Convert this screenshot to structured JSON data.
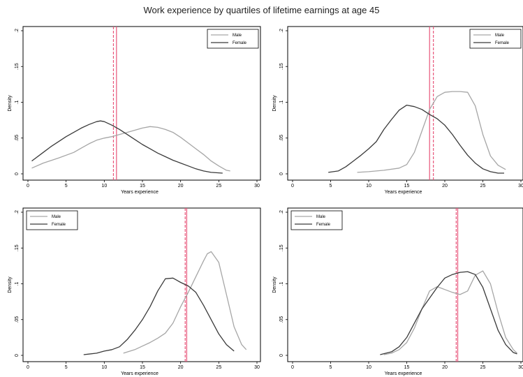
{
  "title": "Work experience by quartiles of lifetime earnings at age 45",
  "colors": {
    "male": "#a6a6a6",
    "female": "#3a3a3a",
    "mean_line": "#e8557a",
    "frame": "#000000"
  },
  "chart_data": [
    {
      "type": "line",
      "panel": "top-left",
      "xlabel": "Years experience",
      "ylabel": "Density",
      "xlim": [
        0,
        30
      ],
      "ylim": [
        0,
        0.2
      ],
      "x_ticks": [
        "0",
        "5",
        "10",
        "15",
        "20",
        "25",
        "30"
      ],
      "y_ticks": [
        "0",
        ".05",
        ".1",
        ".15",
        ".2"
      ],
      "legend_position": "top-right",
      "mean_lines": {
        "solid": 11.6,
        "dashed": 11.2
      },
      "series": [
        {
          "name": "Male",
          "color": "#a6a6a6",
          "x": [
            0.5,
            2,
            4,
            6,
            7,
            8,
            9,
            10,
            11,
            12,
            13,
            14,
            15,
            16,
            17,
            18,
            19,
            20,
            21,
            22,
            23,
            24,
            25,
            26,
            26.5
          ],
          "y": [
            0.008,
            0.015,
            0.022,
            0.03,
            0.036,
            0.042,
            0.047,
            0.05,
            0.052,
            0.055,
            0.058,
            0.061,
            0.064,
            0.066,
            0.065,
            0.062,
            0.058,
            0.051,
            0.043,
            0.035,
            0.027,
            0.018,
            0.011,
            0.005,
            0.004
          ]
        },
        {
          "name": "Female",
          "color": "#3a3a3a",
          "x": [
            0.5,
            2,
            3,
            4,
            5,
            6,
            7,
            8,
            9,
            9.5,
            10,
            11,
            12,
            13,
            14,
            15,
            16,
            17,
            18,
            19,
            20,
            21,
            22,
            23,
            24,
            25.5
          ],
          "y": [
            0.018,
            0.03,
            0.038,
            0.045,
            0.052,
            0.058,
            0.064,
            0.069,
            0.073,
            0.074,
            0.073,
            0.068,
            0.062,
            0.055,
            0.048,
            0.041,
            0.035,
            0.029,
            0.024,
            0.019,
            0.015,
            0.011,
            0.007,
            0.004,
            0.002,
            0.001
          ]
        }
      ]
    },
    {
      "type": "line",
      "panel": "top-right",
      "xlabel": "Years experience",
      "ylabel": "Density",
      "xlim": [
        0,
        30
      ],
      "ylim": [
        0,
        0.2
      ],
      "x_ticks": [
        "0",
        "5",
        "10",
        "15",
        "20",
        "25",
        "30"
      ],
      "y_ticks": [
        "0",
        ".05",
        ".1",
        ".15",
        ".2"
      ],
      "legend_position": "top-right",
      "mean_lines": {
        "solid": 18.0,
        "dashed": 18.5
      },
      "series": [
        {
          "name": "Male",
          "color": "#a6a6a6",
          "x": [
            8.5,
            10,
            12,
            14,
            15,
            16,
            17,
            18,
            19,
            20,
            21,
            22,
            23,
            24,
            25,
            26,
            27,
            28
          ],
          "y": [
            0.002,
            0.003,
            0.005,
            0.008,
            0.013,
            0.03,
            0.06,
            0.09,
            0.108,
            0.114,
            0.115,
            0.115,
            0.114,
            0.095,
            0.055,
            0.025,
            0.012,
            0.006
          ]
        },
        {
          "name": "Female",
          "color": "#3a3a3a",
          "x": [
            4.7,
            6,
            7,
            8,
            9,
            10,
            11,
            12,
            13,
            14,
            15,
            16,
            17,
            18,
            19,
            20,
            21,
            22,
            23,
            24,
            25,
            26,
            27,
            27.8
          ],
          "y": [
            0.002,
            0.004,
            0.01,
            0.018,
            0.026,
            0.035,
            0.045,
            0.062,
            0.076,
            0.089,
            0.096,
            0.094,
            0.09,
            0.083,
            0.077,
            0.068,
            0.055,
            0.04,
            0.026,
            0.015,
            0.007,
            0.003,
            0.001,
            0.001
          ]
        }
      ]
    },
    {
      "type": "line",
      "panel": "bottom-left",
      "xlabel": "Years experience",
      "ylabel": "Density",
      "xlim": [
        0,
        30
      ],
      "ylim": [
        0,
        0.2
      ],
      "x_ticks": [
        "0",
        "5",
        "10",
        "15",
        "20",
        "25",
        "30"
      ],
      "y_ticks": [
        "0",
        ".05",
        ".1",
        ".15",
        ".2"
      ],
      "legend_position": "top-left",
      "mean_lines": {
        "solid": 20.8,
        "dashed": 20.6
      },
      "series": [
        {
          "name": "Male",
          "color": "#a6a6a6",
          "x": [
            12.5,
            14,
            15,
            16,
            17,
            18,
            19,
            20,
            21,
            22,
            23,
            23.5,
            24,
            25,
            26,
            27,
            28,
            28.6
          ],
          "y": [
            0.003,
            0.008,
            0.013,
            0.018,
            0.024,
            0.031,
            0.045,
            0.068,
            0.088,
            0.11,
            0.132,
            0.142,
            0.145,
            0.13,
            0.085,
            0.04,
            0.015,
            0.008
          ]
        },
        {
          "name": "Female",
          "color": "#3a3a3a",
          "x": [
            7.3,
            9,
            10,
            11,
            12,
            13,
            14,
            15,
            16,
            17,
            18,
            19,
            20,
            21,
            22,
            23,
            24,
            25,
            26,
            27
          ],
          "y": [
            0.001,
            0.003,
            0.006,
            0.008,
            0.012,
            0.022,
            0.035,
            0.05,
            0.068,
            0.09,
            0.107,
            0.108,
            0.102,
            0.097,
            0.088,
            0.07,
            0.05,
            0.03,
            0.015,
            0.006
          ]
        }
      ]
    },
    {
      "type": "line",
      "panel": "bottom-right",
      "xlabel": "Years experience",
      "ylabel": "Density",
      "xlim": [
        0,
        30
      ],
      "ylim": [
        0,
        0.2
      ],
      "x_ticks": [
        "0",
        "5",
        "10",
        "15",
        "20",
        "25",
        "30"
      ],
      "y_ticks": [
        "0",
        ".05",
        ".1",
        ".15",
        ".2"
      ],
      "legend_position": "top-left",
      "mean_lines": {
        "solid": 21.7,
        "dashed": 21.5
      },
      "series": [
        {
          "name": "Male",
          "color": "#a6a6a6",
          "x": [
            12,
            13,
            14,
            15,
            16,
            17,
            18,
            19,
            20,
            21,
            22,
            23,
            24,
            25,
            26,
            27,
            28,
            29,
            29.5
          ],
          "y": [
            0.001,
            0.003,
            0.008,
            0.018,
            0.038,
            0.065,
            0.09,
            0.096,
            0.092,
            0.088,
            0.085,
            0.09,
            0.112,
            0.118,
            0.1,
            0.06,
            0.025,
            0.008,
            0.003
          ]
        },
        {
          "name": "Female",
          "color": "#3a3a3a",
          "x": [
            11.5,
            13,
            14,
            15,
            16,
            17,
            18,
            19,
            20,
            21,
            22,
            23,
            24,
            25,
            26,
            27,
            28,
            29,
            29.5
          ],
          "y": [
            0.001,
            0.005,
            0.012,
            0.025,
            0.045,
            0.065,
            0.08,
            0.095,
            0.108,
            0.113,
            0.116,
            0.117,
            0.113,
            0.095,
            0.065,
            0.035,
            0.015,
            0.004,
            0.002
          ]
        }
      ]
    }
  ]
}
